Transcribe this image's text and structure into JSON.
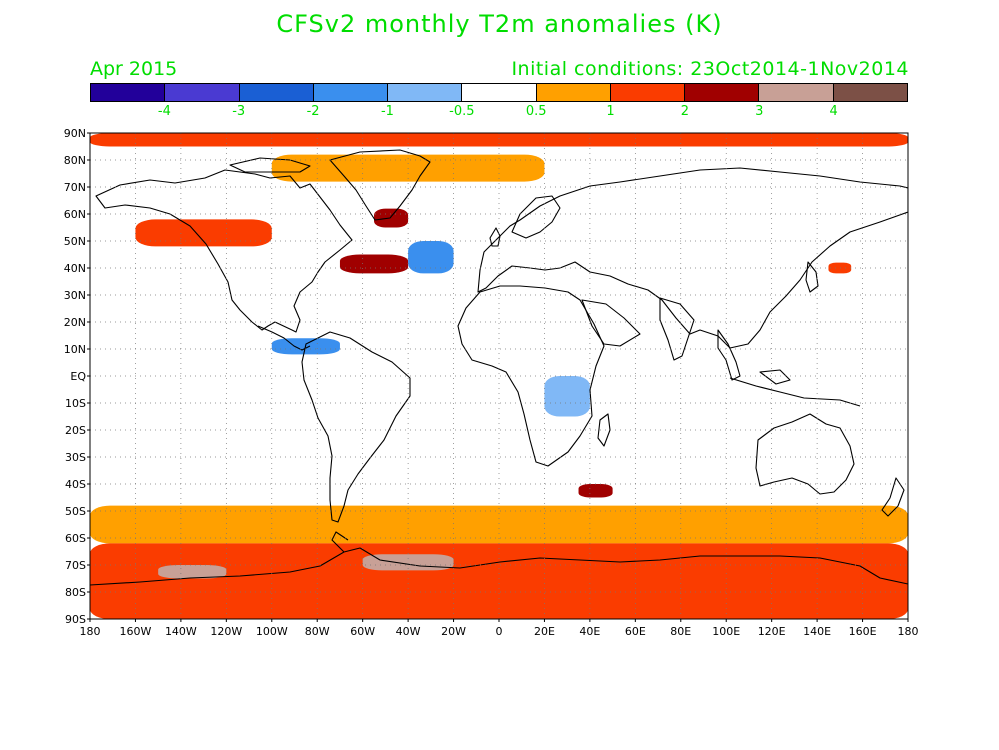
{
  "title": "CFSv2 monthly T2m anomalies (K)",
  "valid_month": "Apr 2015",
  "initial_conditions": "Initial conditions: 23Oct2014-1Nov2014",
  "colorbar": {
    "colors": [
      "#22009a",
      "#4a3ad2",
      "#1a5fd4",
      "#3a8fee",
      "#80b8f6",
      "#ffffff",
      "#ffa000",
      "#fa3c00",
      "#a00000",
      "#c8a096",
      "#7c5046"
    ],
    "labels": [
      "-4",
      "-3",
      "-2",
      "-1",
      "-0.5",
      "0.5",
      "1",
      "2",
      "3",
      "4"
    ]
  },
  "axes": {
    "lat_labels": [
      "90N",
      "80N",
      "70N",
      "60N",
      "50N",
      "40N",
      "30N",
      "20N",
      "10N",
      "EQ",
      "10S",
      "20S",
      "30S",
      "40S",
      "50S",
      "60S",
      "70S",
      "80S",
      "90S"
    ],
    "lon_labels": [
      "180",
      "160W",
      "140W",
      "120W",
      "100W",
      "80W",
      "60W",
      "40W",
      "20W",
      "0",
      "20E",
      "40E",
      "60E",
      "80E",
      "100E",
      "120E",
      "140E",
      "160E",
      "180"
    ]
  },
  "map_data": {
    "type": "filled-contour-map",
    "variable": "T2m anomaly",
    "units": "K",
    "projection": "cylindrical equidistant",
    "extent": {
      "lon": [
        -180,
        180
      ],
      "lat": [
        -90,
        90
      ]
    },
    "levels": [
      -4,
      -3,
      -2,
      -1,
      -0.5,
      0.5,
      1,
      2,
      3,
      4
    ],
    "grid": true,
    "anomaly_regions": [
      {
        "lon": [
          -180,
          180
        ],
        "lat": [
          85,
          90
        ],
        "value": 1.5
      },
      {
        "lon": [
          -100,
          20
        ],
        "lat": [
          72,
          82
        ],
        "value": 0.8
      },
      {
        "lon": [
          -55,
          -40
        ],
        "lat": [
          55,
          62
        ],
        "value": 2.5
      },
      {
        "lon": [
          -70,
          -40
        ],
        "lat": [
          38,
          45
        ],
        "value": 3.0
      },
      {
        "lon": [
          -160,
          -100
        ],
        "lat": [
          48,
          58
        ],
        "value": 1.5
      },
      {
        "lon": [
          -40,
          -20
        ],
        "lat": [
          38,
          50
        ],
        "value": -1.5
      },
      {
        "lon": [
          -100,
          -70
        ],
        "lat": [
          8,
          14
        ],
        "value": -1.5
      },
      {
        "lon": [
          20,
          40
        ],
        "lat": [
          -15,
          0
        ],
        "value": -0.8
      },
      {
        "lon": [
          145,
          155
        ],
        "lat": [
          38,
          42
        ],
        "value": 2.0
      },
      {
        "lon": [
          35,
          50
        ],
        "lat": [
          -45,
          -40
        ],
        "value": 2.5
      },
      {
        "lon": [
          -180,
          180
        ],
        "lat": [
          -62,
          -48
        ],
        "value": 0.8
      },
      {
        "lon": [
          -180,
          180
        ],
        "lat": [
          -90,
          -62
        ],
        "value": 2.0
      },
      {
        "lon": [
          -60,
          -20
        ],
        "lat": [
          -72,
          -66
        ],
        "value": 3.5
      },
      {
        "lon": [
          -150,
          -120
        ],
        "lat": [
          -75,
          -70
        ],
        "value": 3.5
      }
    ]
  }
}
